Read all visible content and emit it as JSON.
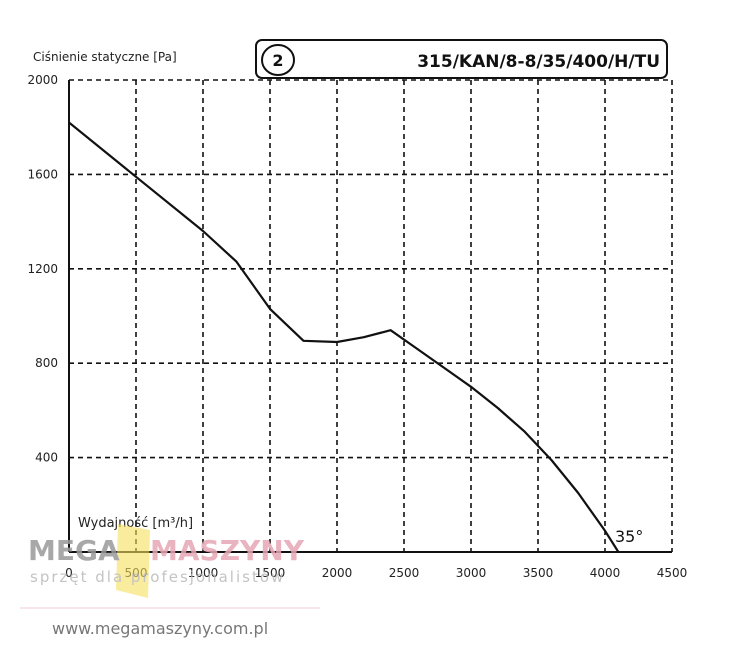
{
  "chart_data": {
    "type": "line",
    "ylabel": "Ciśnienie statyczne [Pa]",
    "xlabel": "Wydajność [m³/h]",
    "model_badge": "2",
    "model": "315/KAN/8-8/35/400/H/TU",
    "angle_label": "35°",
    "xlim": [
      0,
      4500
    ],
    "ylim": [
      0,
      2000
    ],
    "x_ticks": [
      "0",
      "500",
      "1000",
      "1500",
      "2000",
      "2500",
      "3000",
      "3500",
      "4000",
      "4500"
    ],
    "y_ticks": [
      "400",
      "800",
      "1200",
      "1600",
      "2000"
    ],
    "grid": true,
    "series": [
      {
        "x": [
          0,
          500,
          1000,
          1250,
          1500,
          1750,
          2000,
          2200,
          2400,
          2600,
          2800,
          3000,
          3200,
          3400,
          3600,
          3800,
          4000,
          4100
        ],
        "y": [
          1820,
          1590,
          1360,
          1230,
          1030,
          895,
          890,
          910,
          940,
          860,
          780,
          700,
          610,
          510,
          390,
          250,
          90,
          0
        ]
      }
    ]
  },
  "watermark": {
    "brand_left": "MEGA",
    "brand_right": "MASZYNY",
    "tagline": "sprzęt dla profesjonalistów",
    "url": "www.megamaszyny.com.pl",
    "colors": {
      "brand_left": "#9a9a9a",
      "brand_right": "#e6a6b4",
      "logo": "#f6df5a"
    }
  }
}
